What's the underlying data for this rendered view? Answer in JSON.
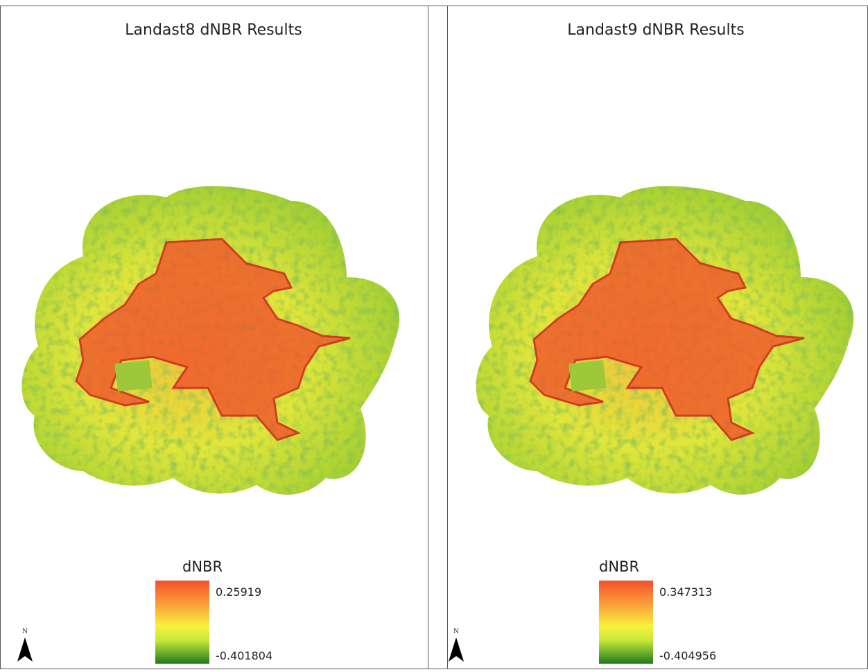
{
  "panels": [
    {
      "title": "Landast8 dNBR Results",
      "legend_title": "dNBR",
      "legend_max": 0.25919,
      "legend_min": -0.401804,
      "north": "N"
    },
    {
      "title": "Landast9 dNBR Results",
      "legend_title": "dNBR",
      "legend_max": 0.347313,
      "legend_min": -0.404956,
      "north": "N"
    }
  ]
}
